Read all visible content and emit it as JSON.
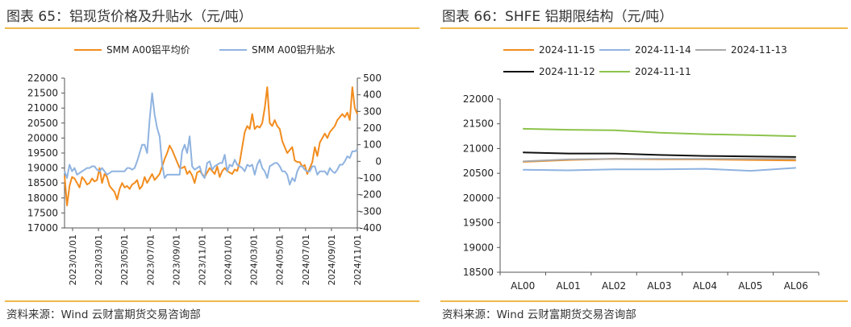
{
  "charts": {
    "left": {
      "title": "图表 65：铝现货价格及升贴水（元/吨）",
      "source": "资料来源：Wind 云财富期货交易咨询部"
    },
    "right": {
      "title": "图表 66：SHFE 铝期限结构（元/吨）",
      "source": "资料来源：Wind 云财富期货交易咨询部"
    }
  },
  "chart_data": [
    {
      "type": "line",
      "title": "图表 65：铝现货价格及升贴水（元/吨）",
      "x_tick_labels": [
        "2023/01/01",
        "2023/03/01",
        "2023/05/01",
        "2023/07/01",
        "2023/09/01",
        "2023/11/01",
        "2024/01/01",
        "2024/03/01",
        "2024/05/01",
        "2024/07/01",
        "2024/09/01",
        "2024/11/01"
      ],
      "y_left_ticks": [
        17000,
        17500,
        18000,
        18500,
        19000,
        19500,
        20000,
        20500,
        21000,
        21500,
        22000
      ],
      "y_right_ticks": [
        -400,
        -300,
        -200,
        -100,
        0,
        100,
        200,
        300,
        400,
        500
      ],
      "ylim_left": [
        17000,
        22000
      ],
      "ylim_right": [
        -400,
        500
      ],
      "legend_position": "top",
      "series": [
        {
          "name": "SMM A00铝平均价",
          "axis": "left",
          "color": "#f28c1e",
          "values": [
            18750,
            17750,
            18400,
            18700,
            18650,
            18500,
            18350,
            18700,
            18600,
            18450,
            18500,
            18650,
            18550,
            18600,
            19000,
            18500,
            18800,
            18700,
            18400,
            18300,
            18200,
            17950,
            18300,
            18500,
            18350,
            18400,
            18300,
            18450,
            18500,
            18600,
            18300,
            18400,
            18700,
            18500,
            18650,
            18800,
            18600,
            18700,
            18800,
            19050,
            19300,
            19500,
            19750,
            19600,
            19400,
            19200,
            19000,
            19000,
            19050,
            18800,
            18900,
            18750,
            18500,
            18850,
            18900,
            18800,
            18700,
            18850,
            19000,
            18900,
            18800,
            19050,
            18700,
            18900,
            19000,
            18900,
            18850,
            18800,
            18950,
            18900,
            19200,
            19700,
            20200,
            20400,
            20300,
            20800,
            20300,
            20400,
            20350,
            20500,
            21000,
            21700,
            20500,
            20400,
            20600,
            20400,
            20300,
            19900,
            19700,
            19500,
            19600,
            19700,
            19250,
            19200,
            19200,
            19050,
            19100,
            18800,
            19000,
            19200,
            19700,
            19400,
            19850,
            20000,
            20150,
            20000,
            20200,
            20300,
            20400,
            20600,
            20700,
            20800,
            20700,
            20850,
            20600,
            21700,
            21000,
            20800
          ]
        },
        {
          "name": "SMM A00铝升贴水",
          "axis": "right",
          "color": "#8fb3e0",
          "values": [
            -60,
            -100,
            -20,
            -60,
            -40,
            -80,
            -70,
            -60,
            -50,
            -40,
            -40,
            -30,
            -30,
            -50,
            -60,
            -40,
            -60,
            -80,
            -70,
            -60,
            -60,
            -60,
            -60,
            -60,
            -60,
            -40,
            -40,
            -50,
            -40,
            0,
            50,
            100,
            100,
            50,
            250,
            410,
            280,
            200,
            150,
            -20,
            -100,
            -80,
            -80,
            -80,
            -80,
            -80,
            -80,
            60,
            100,
            50,
            150,
            -30,
            -50,
            -40,
            -30,
            -80,
            -100,
            -10,
            0,
            -50,
            -30,
            -20,
            -10,
            -10,
            40,
            -60,
            -20,
            -30,
            10,
            -20,
            -30,
            -40,
            -60,
            -20,
            -30,
            -20,
            -80,
            -20,
            10,
            -40,
            -60,
            -100,
            -30,
            -20,
            -10,
            -10,
            -30,
            -60,
            -60,
            -80,
            -140,
            -100,
            -120,
            -60,
            -30,
            -30,
            -50,
            -60,
            -60,
            -30,
            -30,
            -80,
            -60,
            -60,
            -60,
            -80,
            -40,
            -60,
            -70,
            -50,
            -20,
            -20,
            0,
            30,
            20,
            60,
            60,
            70
          ]
        }
      ]
    },
    {
      "type": "line",
      "title": "图表 66：SHFE 铝期限结构（元/吨）",
      "categories": [
        "AL00",
        "AL01",
        "AL02",
        "AL03",
        "AL04",
        "AL05",
        "AL06"
      ],
      "ylim": [
        18500,
        22000
      ],
      "y_ticks": [
        18500,
        19000,
        19500,
        20000,
        20500,
        21000,
        21500,
        22000
      ],
      "legend_position": "top",
      "series": [
        {
          "name": "2024-11-15",
          "color": "#f28c1e",
          "values": [
            20730,
            20770,
            20790,
            20780,
            20780,
            20770,
            20760
          ]
        },
        {
          "name": "2024-11-14",
          "color": "#8fb3e0",
          "values": [
            20570,
            20560,
            20580,
            20580,
            20590,
            20550,
            20610
          ]
        },
        {
          "name": "2024-11-13",
          "color": "#a8a8a8",
          "values": [
            20740,
            20780,
            20790,
            20790,
            20790,
            20790,
            20790
          ]
        },
        {
          "name": "2024-11-12",
          "color": "#111111",
          "values": [
            20920,
            20900,
            20900,
            20870,
            20850,
            20840,
            20830
          ]
        },
        {
          "name": "2024-11-11",
          "color": "#8cc34b",
          "values": [
            21400,
            21380,
            21370,
            21320,
            21290,
            21270,
            21250
          ]
        }
      ]
    }
  ]
}
